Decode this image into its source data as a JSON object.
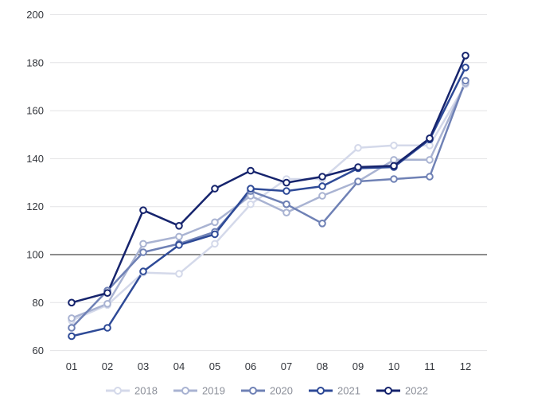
{
  "chart_data": {
    "type": "line",
    "title": "",
    "xlabel": "",
    "ylabel": "",
    "x_categories": [
      "01",
      "02",
      "03",
      "04",
      "05",
      "06",
      "07",
      "08",
      "09",
      "10",
      "11",
      "12"
    ],
    "yticks": [
      60,
      80,
      100,
      120,
      140,
      160,
      180,
      200
    ],
    "ylim": [
      60,
      200
    ],
    "reference_line": 100,
    "grid": "horizontal",
    "legend_position": "bottom",
    "marker": "open-circle",
    "series": [
      {
        "name": "2018",
        "color": "#d4d9ea",
        "values": [
          72.5,
          79,
          92.5,
          92,
          104.5,
          121,
          131.5,
          131.5,
          144.5,
          145.5,
          145.5,
          171
        ]
      },
      {
        "name": "2019",
        "color": "#a9b3d2",
        "values": [
          73.5,
          79.5,
          104.5,
          107.5,
          113.5,
          124.5,
          117.5,
          124.5,
          130.5,
          139.5,
          139.5,
          171.5
        ]
      },
      {
        "name": "2020",
        "color": "#6f81b5",
        "values": [
          69.5,
          85,
          101,
          104.5,
          109.5,
          126.5,
          121,
          113,
          130.5,
          131.5,
          132.5,
          172.5
        ]
      },
      {
        "name": "2021",
        "color": "#2e4a97",
        "values": [
          66,
          69.5,
          93,
          104,
          108.5,
          127.5,
          126.5,
          128.5,
          136,
          136.5,
          148,
          178
        ]
      },
      {
        "name": "2022",
        "color": "#16246d",
        "values": [
          80,
          84,
          118.5,
          112,
          127.5,
          135,
          130,
          132.5,
          136.5,
          137,
          148.5,
          183
        ]
      }
    ],
    "style": {
      "background": "#ffffff",
      "gridline_color": "#e3e3e5",
      "reference_line_color": "#1a1a1a",
      "axis_text_color": "#33363c",
      "legend_text_color": "#8b8f99",
      "marker_fill": "#ffffff"
    }
  }
}
